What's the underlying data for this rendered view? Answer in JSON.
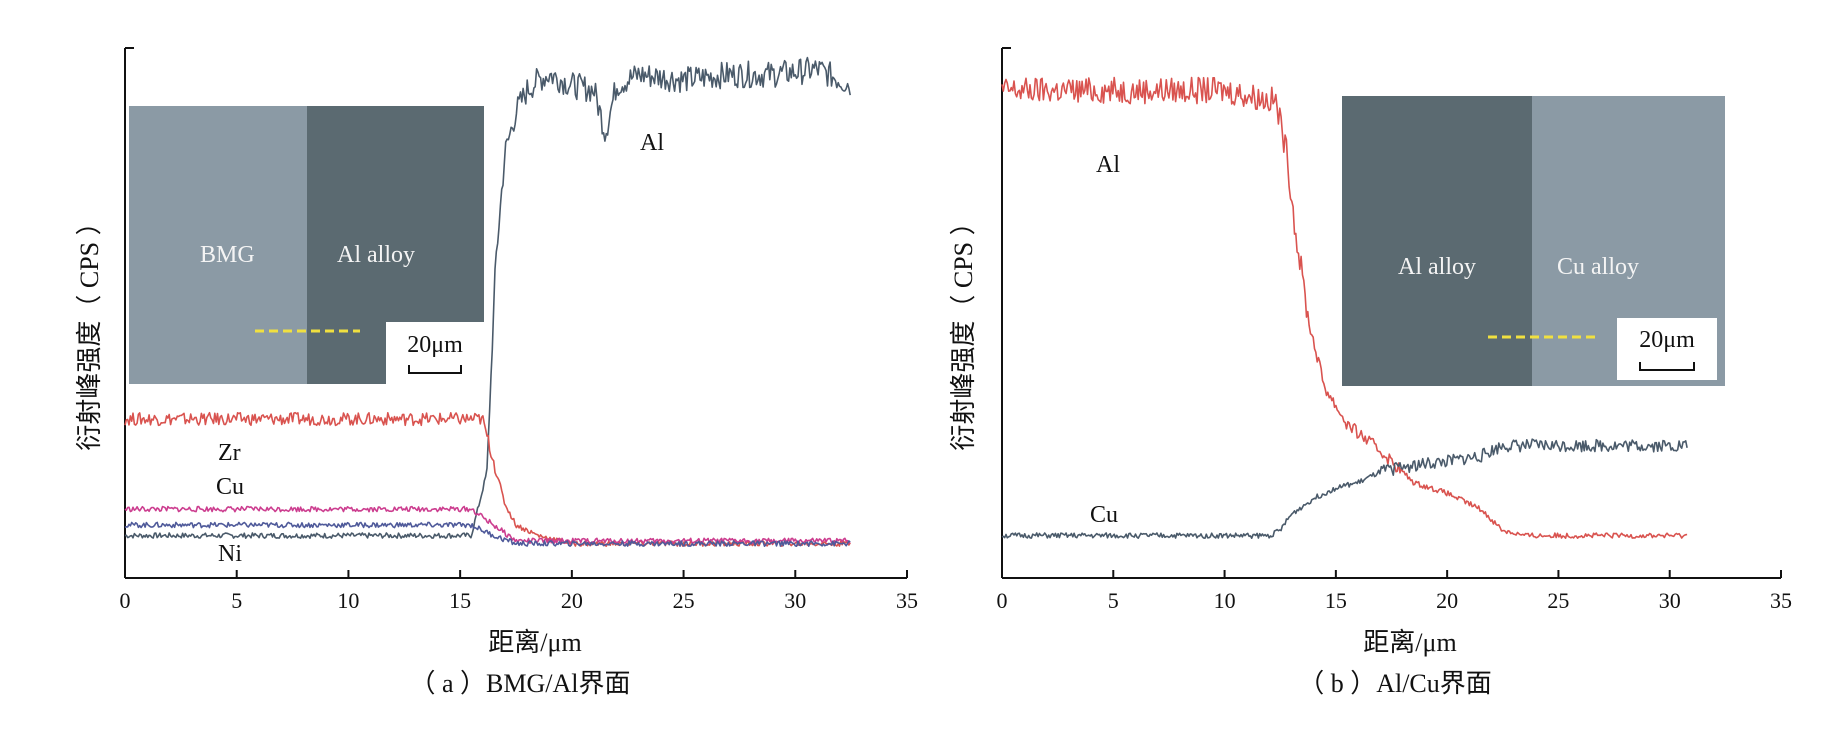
{
  "chart_data": [
    {
      "type": "line",
      "caption": "（ a ）BMG/Al界面",
      "xlabel": "距离/μm",
      "ylabel": "衍射峰强度（ CPS ）",
      "xlim": [
        0,
        35
      ],
      "xticks": [
        0,
        5,
        10,
        15,
        20,
        25,
        30,
        35
      ],
      "y_unitless": true,
      "series": [
        {
          "name": "Al",
          "color": "#4a5a6a",
          "x": [
            0,
            15.5,
            16.2,
            16.6,
            17.0,
            17.5,
            18.0,
            18.5,
            19.0,
            20.0,
            21.0,
            21.5,
            22.0,
            23.0,
            25.0,
            27.0,
            29.0,
            31.0,
            32.5
          ],
          "y": [
            0.08,
            0.08,
            0.2,
            0.6,
            0.8,
            0.88,
            0.92,
            0.94,
            0.95,
            0.93,
            0.92,
            0.84,
            0.93,
            0.95,
            0.94,
            0.95,
            0.95,
            0.96,
            0.93
          ]
        },
        {
          "name": "Zr",
          "color": "#d9534f",
          "x": [
            0,
            15.0,
            16.0,
            16.5,
            17.0,
            17.5,
            18.5,
            20.0,
            32.5
          ],
          "y": [
            0.3,
            0.3,
            0.3,
            0.22,
            0.14,
            0.1,
            0.08,
            0.065,
            0.065
          ]
        },
        {
          "name": "Cu",
          "color": "#cc3d8f",
          "x": [
            0,
            15.5,
            16.5,
            17.5,
            32.5
          ],
          "y": [
            0.13,
            0.13,
            0.1,
            0.07,
            0.07
          ]
        },
        {
          "name": "Ni",
          "color": "#4f5a9a",
          "x": [
            0,
            15.5,
            16.5,
            17.5,
            32.5
          ],
          "y": [
            0.1,
            0.1,
            0.08,
            0.065,
            0.065
          ]
        }
      ],
      "inset": {
        "left_label": "BMG",
        "right_label": "Al alloy",
        "scale_label": "20μm"
      }
    },
    {
      "type": "line",
      "caption": "（ b ）Al/Cu界面",
      "xlabel": "距离/μm",
      "ylabel": "衍射峰强度（ CPS ）",
      "xlim": [
        0,
        35
      ],
      "xticks": [
        0,
        5,
        10,
        15,
        20,
        25,
        30,
        35
      ],
      "y_unitless": true,
      "series": [
        {
          "name": "Al",
          "color": "#d9534f",
          "x": [
            0,
            10.0,
            12.3,
            12.8,
            13.2,
            13.8,
            14.5,
            15.5,
            17.0,
            18.5,
            20.0,
            21.5,
            22.5,
            23.5,
            30.8
          ],
          "y": [
            0.92,
            0.92,
            0.9,
            0.8,
            0.65,
            0.48,
            0.36,
            0.29,
            0.24,
            0.18,
            0.16,
            0.13,
            0.09,
            0.08,
            0.08
          ]
        },
        {
          "name": "Cu",
          "color": "#4a5a6a",
          "x": [
            0,
            12.0,
            12.5,
            13.0,
            14.0,
            15.0,
            16.0,
            17.0,
            18.0,
            20.0,
            21.5,
            22.5,
            23.5,
            30.8
          ],
          "y": [
            0.08,
            0.08,
            0.09,
            0.12,
            0.15,
            0.17,
            0.18,
            0.2,
            0.21,
            0.22,
            0.23,
            0.25,
            0.25,
            0.25
          ]
        }
      ],
      "inset": {
        "left_label": "Al alloy",
        "right_label": "Cu alloy",
        "scale_label": "20μm"
      }
    }
  ]
}
